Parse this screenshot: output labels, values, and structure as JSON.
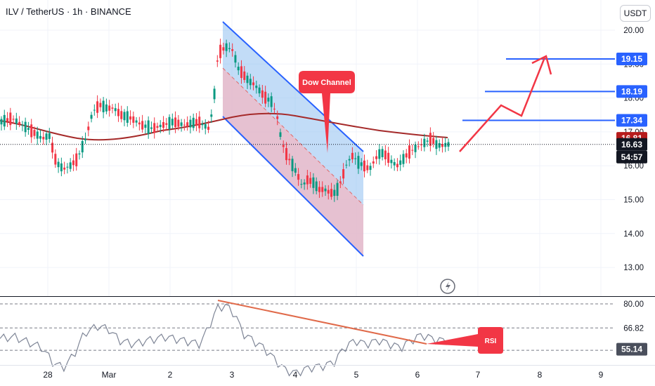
{
  "header": {
    "symbol_title": "ILV / TetherUS · 1h · BINANCE",
    "currency": "USDT"
  },
  "price_axis": {
    "ticks": [
      "20.00",
      "19.00",
      "18.00",
      "17.00",
      "16.00",
      "15.00",
      "14.00",
      "13.00"
    ],
    "labels": [
      {
        "value": 19.15,
        "text": "19.15",
        "color": "#2962ff",
        "kind": "target-level"
      },
      {
        "value": 18.19,
        "text": "18.19",
        "color": "#2962ff",
        "kind": "target-level"
      },
      {
        "value": 17.34,
        "text": "17.34",
        "color": "#2962ff",
        "kind": "target-level"
      },
      {
        "value": 16.81,
        "text": "16.81",
        "color": "#b71c1c",
        "kind": "moving-average"
      },
      {
        "value": 16.63,
        "text": "16.63",
        "color": "#131722",
        "kind": "last-price"
      }
    ],
    "countdown": "54:57"
  },
  "time_axis": {
    "labels": [
      "28",
      "Mar",
      "2",
      "3",
      "4",
      "5",
      "6",
      "7",
      "8",
      "9"
    ]
  },
  "annotations": {
    "dow_channel_label": "Dow Channel",
    "rsi_label": "RSI"
  },
  "rsi_axis": {
    "ticks": [
      "80.00",
      "66.82",
      "54.56"
    ],
    "current_value": "55.14",
    "current_color": "#4a4f5c"
  },
  "colors": {
    "channel_blue": "#2962ff",
    "channel_fill": "#90c0f0",
    "channel_lower_fill": "#f1b8c4",
    "ma_line": "#a52a2a",
    "projection": "#f23645",
    "candle_up": "#089981",
    "candle_down": "#f23645",
    "rsi_line": "#7e8596",
    "rsi_trendline": "#e06a4a"
  },
  "icons": {
    "lightning": "lightning-icon"
  }
}
